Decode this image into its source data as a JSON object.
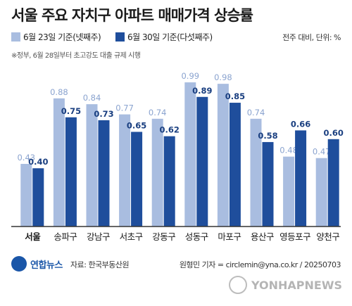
{
  "header": {
    "title": "서울 주요 자치구 아파트 매매가격 상승률",
    "note": "※정부, 6월 28일부터 초고강도 대출 규제 시행",
    "unit": "전주 대비, 단위: %"
  },
  "chart_data": {
    "type": "bar",
    "categories": [
      "서울",
      "송파구",
      "강남구",
      "서초구",
      "강동구",
      "성동구",
      "마포구",
      "용산구",
      "영등포구",
      "양천구"
    ],
    "series": [
      {
        "name": "6월 23일 기준(넷째주)",
        "values": [
          0.43,
          0.88,
          0.84,
          0.77,
          0.74,
          0.99,
          0.98,
          0.74,
          0.48,
          0.47
        ]
      },
      {
        "name": "6월 30일 기준(다섯째주)",
        "values": [
          0.4,
          0.75,
          0.73,
          0.65,
          0.62,
          0.89,
          0.85,
          0.58,
          0.66,
          0.6
        ]
      }
    ],
    "value_labels": [
      [
        "0.43",
        "0.88",
        "0.84",
        "0.77",
        "0.74",
        "0.99",
        "0.98",
        "0.74",
        "0.48",
        "0.47"
      ],
      [
        "0.40",
        "0.75",
        "0.73",
        "0.65",
        "0.62",
        "0.89",
        "0.85",
        "0.58",
        "0.66",
        "0.60"
      ]
    ],
    "ylim": [
      0,
      1.0
    ],
    "grid": false,
    "legend_position": "top-left",
    "colors": [
      "#a9bde0",
      "#1f4e9c"
    ],
    "label_colors": [
      "#8aa3cf",
      "#1a3f80"
    ]
  },
  "footer": {
    "logo": "연합뉴스",
    "source": "자료: 한국부동산원",
    "credit": "원형민 기자 = circlemin@yna.co.kr / 20250703",
    "watermark": "YONHAPNEWS"
  }
}
